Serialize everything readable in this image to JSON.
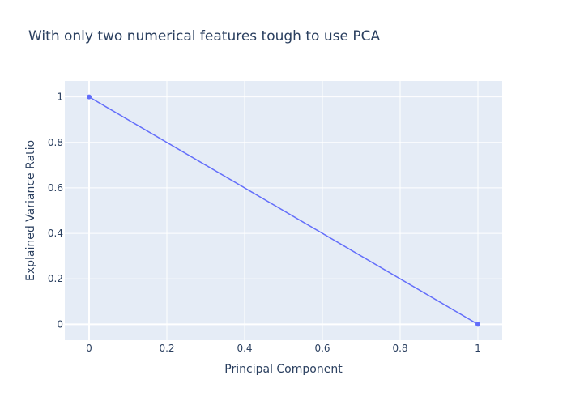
{
  "title": "With only two numerical features tough to use PCA",
  "colors": {
    "plot_background": "#e5ecf6",
    "gridline": "#ffffff",
    "series_line": "#636efa",
    "text": "#2a3f5f",
    "page_background": "#ffffff"
  },
  "chart_data": {
    "type": "line",
    "title": "With only two numerical features tough to use PCA",
    "xlabel": "Principal Component",
    "ylabel": "Explained Variance Ratio",
    "xlim": [
      -0.0625,
      1.0625
    ],
    "ylim": [
      -0.07,
      1.07
    ],
    "x_ticks": [
      0,
      0.2,
      0.4,
      0.6,
      0.8,
      1
    ],
    "x_tick_labels": [
      "0",
      "0.2",
      "0.4",
      "0.6",
      "0.8",
      "1"
    ],
    "y_ticks": [
      0,
      0.2,
      0.4,
      0.6,
      0.8,
      1
    ],
    "y_tick_labels": [
      "0",
      "0.2",
      "0.4",
      "0.6",
      "0.8",
      "1"
    ],
    "grid": true,
    "legend": "none",
    "series": [
      {
        "x": [
          0,
          1
        ],
        "y": [
          1,
          0
        ],
        "mode": "lines+markers"
      }
    ]
  }
}
